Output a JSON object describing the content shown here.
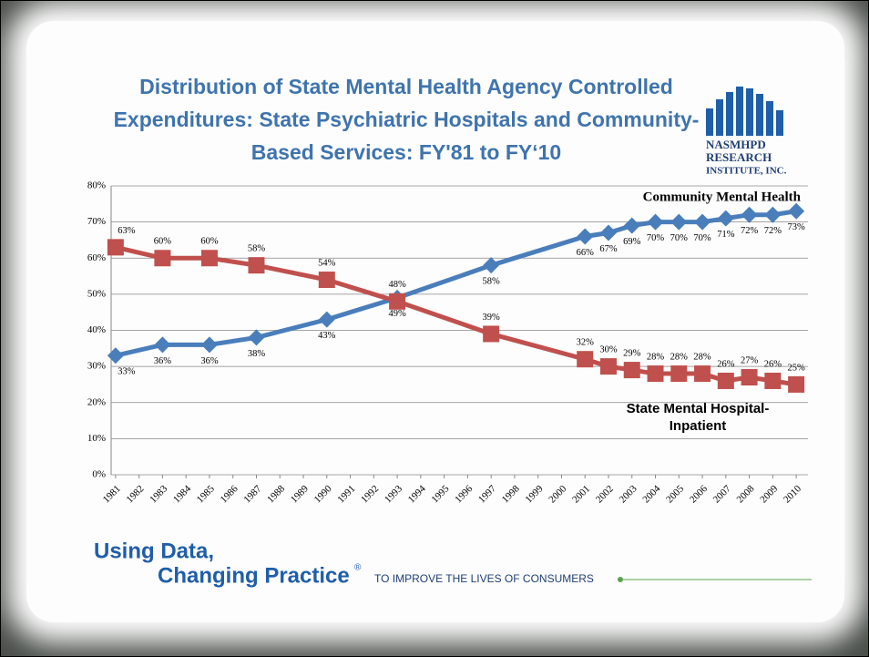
{
  "chart_data": {
    "type": "line",
    "title": "Distribution of State Mental Health Agency Controlled Expenditures: State Psychiatric Hospitals and Community-Based Services: FY'81 to FY‘10",
    "xlim": [
      1980.5,
      2010.5
    ],
    "xticks": [
      1981,
      1982,
      1983,
      1984,
      1985,
      1986,
      1987,
      1988,
      1989,
      1990,
      1991,
      1992,
      1993,
      1994,
      1995,
      1996,
      1997,
      1998,
      1999,
      2000,
      2001,
      2002,
      2003,
      2004,
      2005,
      2006,
      2007,
      2008,
      2009,
      2010
    ],
    "ylim": [
      0,
      80
    ],
    "yticks": [
      {
        "value": 0,
        "label": "0%"
      },
      {
        "value": 10,
        "label": "10%"
      },
      {
        "value": 20,
        "label": "20%"
      },
      {
        "value": 30,
        "label": "30%"
      },
      {
        "value": 40,
        "label": "40%"
      },
      {
        "value": 50,
        "label": "50%"
      },
      {
        "value": 60,
        "label": "60%"
      },
      {
        "value": 70,
        "label": "70%"
      },
      {
        "value": 80,
        "label": "80%"
      }
    ],
    "grid": true,
    "series": [
      {
        "name": "Community Mental Health",
        "color": "#4a7ebb",
        "marker": "diamond",
        "x": [
          1981,
          1983,
          1985,
          1987,
          1990,
          1993,
          1997,
          2001,
          2002,
          2003,
          2004,
          2005,
          2006,
          2007,
          2008,
          2009,
          2010
        ],
        "values": [
          33,
          36,
          36,
          38,
          43,
          49,
          58,
          66,
          67,
          69,
          70,
          70,
          70,
          71,
          72,
          72,
          73
        ],
        "value_labels": [
          "33%",
          "36%",
          "36%",
          "38%",
          "43%",
          "49%",
          "58%",
          "66%",
          "67%",
          "69%",
          "70%",
          "70%",
          "70%",
          "71%",
          "72%",
          "72%",
          "73%"
        ]
      },
      {
        "name": "State Mental Hospital-Inpatient",
        "color": "#c0504d",
        "marker": "square",
        "x": [
          1981,
          1983,
          1985,
          1987,
          1990,
          1993,
          1997,
          2001,
          2002,
          2003,
          2004,
          2005,
          2006,
          2007,
          2008,
          2009,
          2010
        ],
        "values": [
          63,
          60,
          60,
          58,
          54,
          48,
          39,
          32,
          30,
          29,
          28,
          28,
          28,
          26,
          27,
          26,
          25
        ],
        "value_labels": [
          "63%",
          "60%",
          "60%",
          "58%",
          "54%",
          "48%",
          "39%",
          "32%",
          "30%",
          "29%",
          "28%",
          "28%",
          "28%",
          "26%",
          "27%",
          "26%",
          "25%"
        ]
      }
    ]
  },
  "logo": {
    "line1": "NASMHPD",
    "line2": "RESEARCH",
    "line3": "INSTITUTE, INC."
  },
  "footer": {
    "line1": "Using Data,",
    "line2": "Changing Practice",
    "mark": "®",
    "tagline": "TO IMPROVE THE LIVES OF CONSUMERS"
  }
}
